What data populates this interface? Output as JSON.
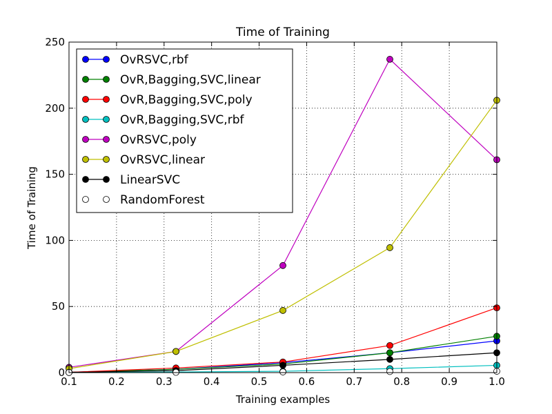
{
  "chart_data": {
    "type": "line",
    "title": "Time of Training",
    "xlabel": "Training examples",
    "ylabel": "Time of Training",
    "xlim": [
      0.1,
      1.0
    ],
    "ylim": [
      0,
      250
    ],
    "xticks": [
      "0.1",
      "0.2",
      "0.3",
      "0.4",
      "0.5",
      "0.6",
      "0.7",
      "0.8",
      "0.9",
      "1.0"
    ],
    "xtick_values": [
      0.1,
      0.2,
      0.3,
      0.4,
      0.5,
      0.6,
      0.7,
      0.8,
      0.9,
      1.0
    ],
    "yticks": [
      "0",
      "50",
      "100",
      "150",
      "200",
      "250"
    ],
    "ytick_values": [
      0,
      50,
      100,
      150,
      200,
      250
    ],
    "grid": true,
    "legend_placement": "top-left",
    "x": [
      0.1,
      0.325,
      0.55,
      0.775,
      1.0
    ],
    "series": [
      {
        "name": "OvRSVC,rbf",
        "color": "#0000ff",
        "marker": "filled",
        "line": true,
        "values": [
          0.3,
          2.5,
          7.5,
          15,
          24
        ]
      },
      {
        "name": "OvR,Bagging,SVC,linear",
        "color": "#008000",
        "marker": "filled",
        "line": true,
        "values": [
          0.2,
          2.5,
          6.5,
          15,
          27.5
        ]
      },
      {
        "name": "OvR,Bagging,SVC,poly",
        "color": "#ff0000",
        "marker": "filled",
        "line": true,
        "values": [
          0.2,
          3.5,
          8,
          20.5,
          49
        ]
      },
      {
        "name": "OvR,Bagging,SVC,rbf",
        "color": "#00bfbf",
        "marker": "filled",
        "line": true,
        "values": [
          0.1,
          0.5,
          1,
          3,
          5.5
        ]
      },
      {
        "name": "OvRSVC,poly",
        "color": "#bf00bf",
        "marker": "filled",
        "line": true,
        "values": [
          4,
          16,
          81,
          237,
          161
        ]
      },
      {
        "name": "OvRSVC,linear",
        "color": "#bfbf00",
        "marker": "filled",
        "line": true,
        "values": [
          3,
          16,
          47,
          94.5,
          206
        ]
      },
      {
        "name": "LinearSVC",
        "color": "#000000",
        "marker": "filled",
        "line": true,
        "values": [
          0.2,
          1.5,
          5.5,
          10,
          15
        ]
      },
      {
        "name": "RandomForest",
        "color": "#000000",
        "marker": "hollow",
        "line": false,
        "values": [
          0.1,
          0.2,
          0.5,
          0.8,
          1.0
        ]
      }
    ]
  }
}
